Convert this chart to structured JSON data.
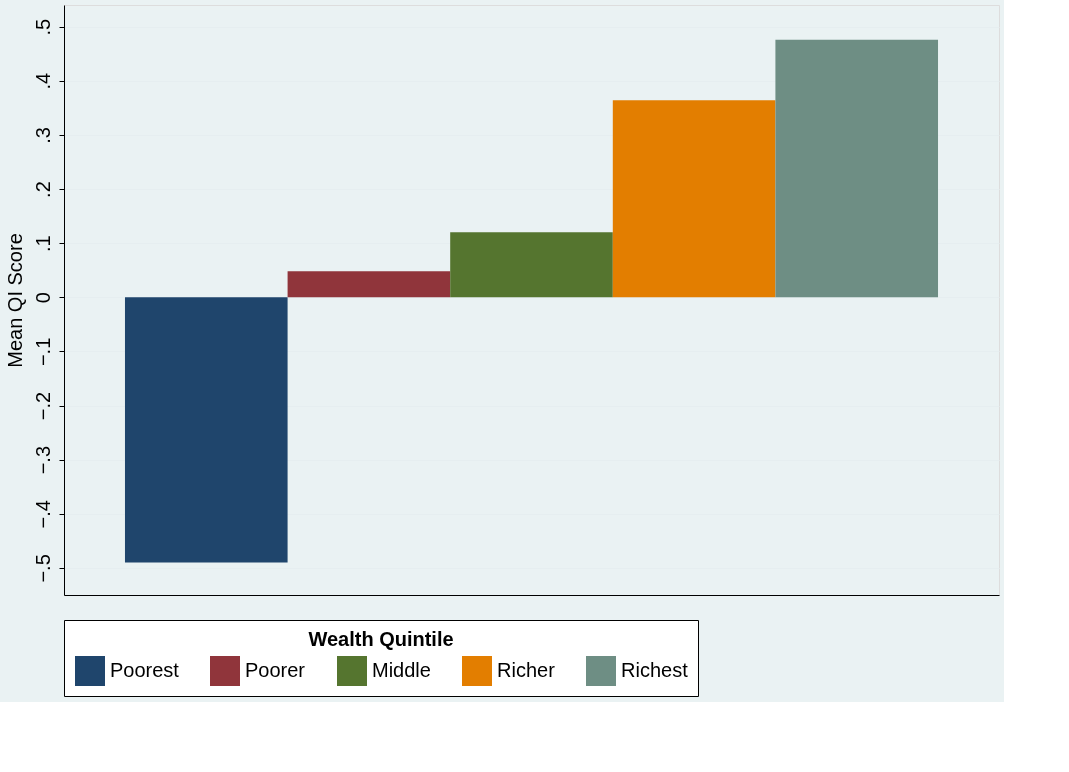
{
  "chart_data": {
    "type": "bar",
    "ylabel": "Mean QI Score",
    "legend_title": "Wealth Quintile",
    "legend": "bottom",
    "grid": "y",
    "tick_labels": "y",
    "categories": [
      null,
      null,
      null,
      null,
      null
    ],
    "ylim": [
      -0.55,
      0.54
    ],
    "yticks": [
      {
        "value": -0.5,
        "label": "−.5"
      },
      {
        "value": -0.4,
        "label": "−.4"
      },
      {
        "value": -0.3,
        "label": "−.3"
      },
      {
        "value": -0.2,
        "label": "−.2"
      },
      {
        "value": -0.1,
        "label": "−.1"
      },
      0,
      {
        "value": 0.1,
        "label": ".1"
      },
      {
        "value": 0.2,
        "label": ".2"
      },
      {
        "value": 0.3,
        "label": ".3"
      },
      {
        "value": 0.4,
        "label": ".4"
      },
      {
        "value": 0.5,
        "label": ".5"
      }
    ],
    "series": [
      {
        "name": "Poorest",
        "color": "#1f456c",
        "values": [
          -0.49,
          null,
          null,
          null,
          null
        ]
      },
      {
        "name": "Poorer",
        "color": "#90353b",
        "values": [
          null,
          0.048,
          null,
          null,
          null
        ]
      },
      {
        "name": "Middle",
        "color": "#55752f",
        "values": [
          null,
          null,
          0.12,
          null,
          null
        ]
      },
      {
        "name": "Richer",
        "color": "#e37e00",
        "values": [
          null,
          null,
          null,
          0.364,
          null
        ]
      },
      {
        "name": "Richest",
        "color": "#6e8e84",
        "values": [
          null,
          null,
          null,
          null,
          0.476
        ]
      }
    ]
  }
}
